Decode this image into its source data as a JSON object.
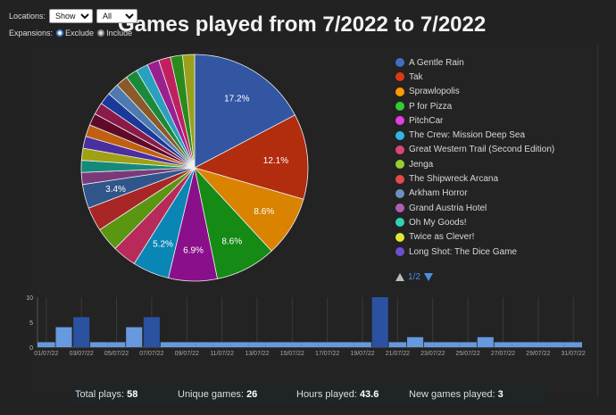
{
  "controls": {
    "locations_label": "Locations:",
    "locations_show": "Show",
    "locations_filter": "All",
    "expansions_label": "Expansions:",
    "exclude_label": "Exclude",
    "include_label": "Include"
  },
  "title": "Games played from 7/2022 to 7/2022",
  "legend": {
    "items": [
      {
        "name": "A Gentle Rain",
        "color": "#3f6fbf"
      },
      {
        "name": "Tak",
        "color": "#dc3912"
      },
      {
        "name": "Sprawlopolis",
        "color": "#ff9900"
      },
      {
        "name": "P for Pizza",
        "color": "#33cc33"
      },
      {
        "name": "PitchCar",
        "color": "#e040e0"
      },
      {
        "name": "The Crew: Mission Deep Sea",
        "color": "#33b5e5"
      },
      {
        "name": "Great Western Trail (Second Edition)",
        "color": "#dd4477"
      },
      {
        "name": "Jenga",
        "color": "#99cc33"
      },
      {
        "name": "The Shipwreck Arcana",
        "color": "#e34a4a"
      },
      {
        "name": "Arkham Horror",
        "color": "#6f8fbf"
      },
      {
        "name": "Grand Austria Hotel",
        "color": "#b05fb0"
      },
      {
        "name": "Oh My Goods!",
        "color": "#33d1b5"
      },
      {
        "name": "Twice as Clever!",
        "color": "#e5e533"
      },
      {
        "name": "Long Shot: The Dice Game",
        "color": "#6d4fd1"
      }
    ],
    "page": "1/2"
  },
  "chart_data": [
    {
      "type": "pie",
      "slices": [
        {
          "name": "A Gentle Rain",
          "percent": 17.2,
          "color": "#3356a3",
          "label": "17.2%"
        },
        {
          "name": "Tak",
          "percent": 12.1,
          "color": "#b22c0e",
          "label": "12.1%"
        },
        {
          "name": "Sprawlopolis",
          "percent": 8.6,
          "color": "#d98300",
          "label": "8.6%"
        },
        {
          "name": "P for Pizza",
          "percent": 8.6,
          "color": "#158a15",
          "label": "8.6%"
        },
        {
          "name": "PitchCar",
          "percent": 6.9,
          "color": "#8a0f8a",
          "label": "6.9%"
        },
        {
          "name": "The Crew: Mission Deep Sea",
          "percent": 5.2,
          "color": "#0a86b5",
          "label": "5.2%"
        },
        {
          "name": "Great Western Trail (Second Edition)",
          "percent": 3.4,
          "color": "#b82a5a",
          "label": ""
        },
        {
          "name": "Jenga",
          "percent": 3.4,
          "color": "#5a9612",
          "label": ""
        },
        {
          "name": "The Shipwreck Arcana",
          "percent": 3.4,
          "color": "#a82626",
          "label": ""
        },
        {
          "name": "Arkham Horror",
          "percent": 3.4,
          "color": "#30558a",
          "label": "3.4%"
        },
        {
          "name": "Grand Austria Hotel",
          "percent": 1.7,
          "color": "#7a3a7a",
          "label": ""
        },
        {
          "name": "Oh My Goods!",
          "percent": 1.7,
          "color": "#148a7a",
          "label": ""
        },
        {
          "name": "Twice as Clever!",
          "percent": 1.7,
          "color": "#a0a012",
          "label": ""
        },
        {
          "name": "Long Shot: The Dice Game",
          "percent": 1.7,
          "color": "#4a2fa0",
          "label": ""
        },
        {
          "name": "",
          "percent": 1.7,
          "color": "#c06010",
          "label": ""
        },
        {
          "name": "",
          "percent": 1.7,
          "color": "#600a2a",
          "label": ""
        },
        {
          "name": "",
          "percent": 1.7,
          "color": "#8a1a4a",
          "label": ""
        },
        {
          "name": "",
          "percent": 1.7,
          "color": "#1a3a9a",
          "label": ""
        },
        {
          "name": "",
          "percent": 1.7,
          "color": "#4f7ab0",
          "label": ""
        },
        {
          "name": "",
          "percent": 1.7,
          "color": "#8a5a2a",
          "label": ""
        },
        {
          "name": "",
          "percent": 1.7,
          "color": "#1a8a3a",
          "label": ""
        },
        {
          "name": "",
          "percent": 1.7,
          "color": "#2aa0c0",
          "label": ""
        },
        {
          "name": "",
          "percent": 1.7,
          "color": "#9a2090",
          "label": ""
        },
        {
          "name": "",
          "percent": 1.7,
          "color": "#c02060",
          "label": ""
        },
        {
          "name": "",
          "percent": 1.7,
          "color": "#2a8a1a",
          "label": ""
        },
        {
          "name": "",
          "percent": 1.7,
          "color": "#9aa01a",
          "label": ""
        }
      ]
    },
    {
      "type": "bar",
      "categories": [
        "01/07/22",
        "02/07/22",
        "03/07/22",
        "04/07/22",
        "05/07/22",
        "06/07/22",
        "07/07/22",
        "08/07/22",
        "09/07/22",
        "10/07/22",
        "11/07/22",
        "12/07/22",
        "13/07/22",
        "14/07/22",
        "15/07/22",
        "16/07/22",
        "17/07/22",
        "18/07/22",
        "19/07/22",
        "20/07/22",
        "21/07/22",
        "22/07/22",
        "23/07/22",
        "24/07/22",
        "25/07/22",
        "26/07/22",
        "27/07/22",
        "28/07/22",
        "29/07/22",
        "30/07/22",
        "31/07/22"
      ],
      "tick_labels": [
        "01/07/22",
        "03/07/22",
        "05/07/22",
        "07/07/22",
        "09/07/22",
        "11/07/22",
        "13/07/22",
        "15/07/22",
        "17/07/22",
        "19/07/22",
        "21/07/22",
        "23/07/22",
        "25/07/22",
        "27/07/22",
        "29/07/22",
        "31/07/22"
      ],
      "series": [
        {
          "values": [
            1,
            4,
            6,
            1,
            1,
            4,
            6,
            1,
            1,
            1,
            1,
            1,
            1,
            1,
            1,
            1,
            1,
            1,
            1,
            10,
            1,
            2,
            1,
            1,
            1,
            2,
            1,
            1,
            1,
            1,
            1
          ]
        }
      ],
      "ylim": [
        0,
        10
      ],
      "yticks": [
        0,
        5,
        10
      ],
      "colors": {
        "light": "#6699dd",
        "dark": "#2a52a0",
        "baseline": "#6699dd"
      }
    }
  ],
  "stats": {
    "total_label": "Total plays:",
    "total_value": "58",
    "unique_label": "Unique games:",
    "unique_value": "26",
    "hours_label": "Hours played:",
    "hours_value": "43.6",
    "new_label": "New games played:",
    "new_value": "3"
  }
}
